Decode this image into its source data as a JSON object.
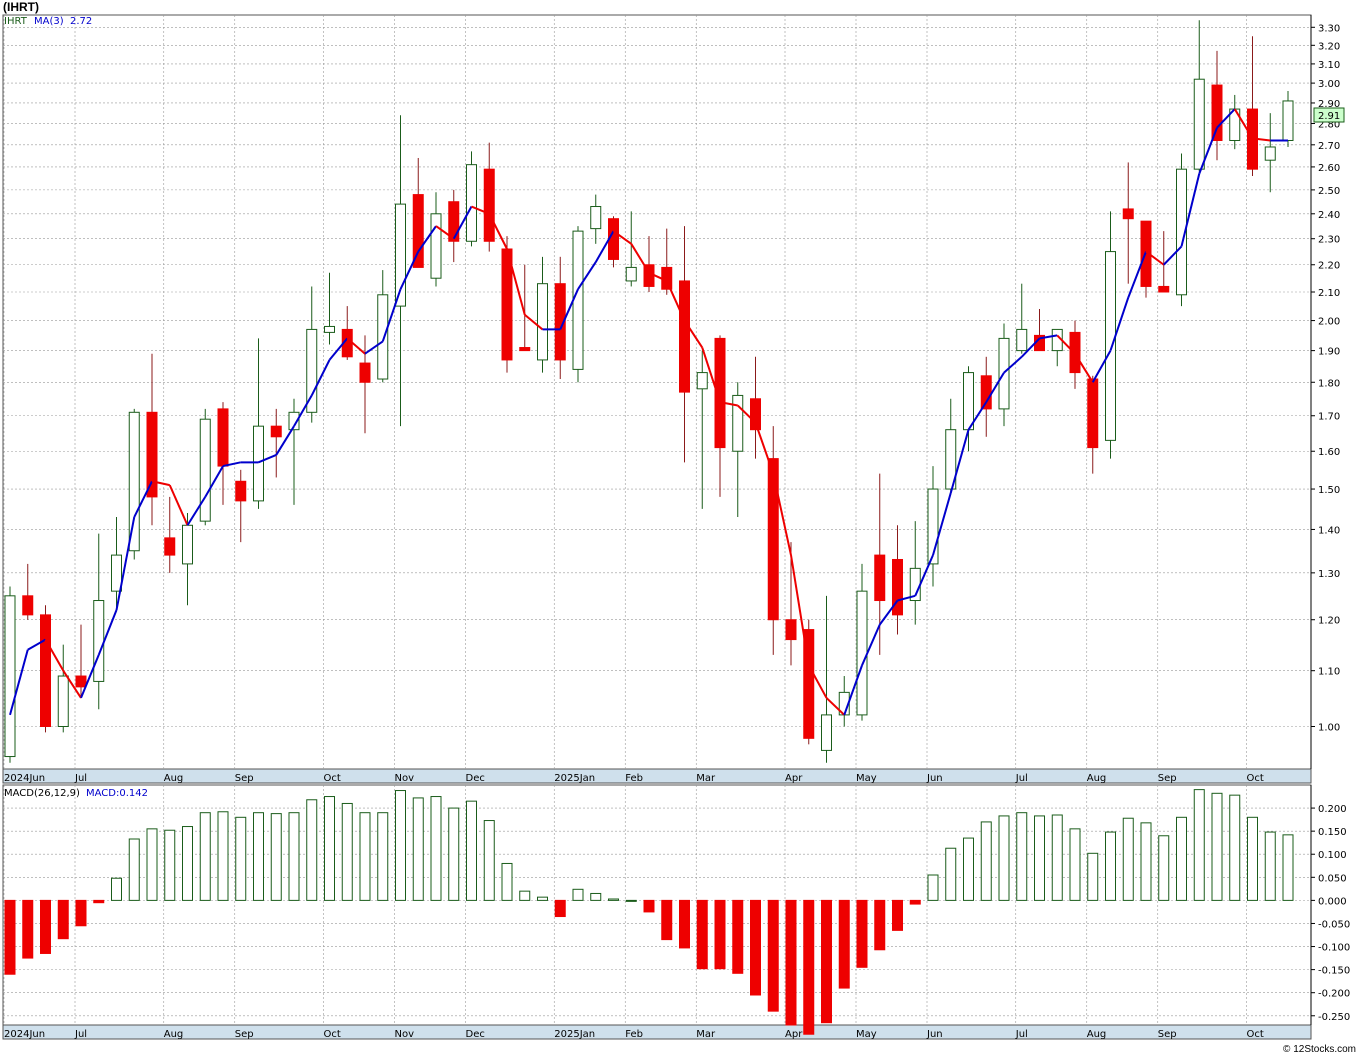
{
  "page": {
    "title": "(IHRT)",
    "footer": "© 12Stocks.com"
  },
  "price_panel": {
    "legend_symbol": "IHRT",
    "legend_ma": "MA(3)",
    "legend_ma_value": "2.72",
    "last_price_label": "2.91"
  },
  "macd_panel": {
    "legend_macd": "MACD(26,12,9)",
    "legend_macd_value": "MACD:0.142"
  },
  "colors": {
    "up_candle": "#1a5c1a",
    "down_candle": "#ee0000",
    "ma_up": "#0000cc",
    "ma_down": "#ee0000",
    "grid": "#999999",
    "axis_band": "#cfe0ec",
    "price_box": "#ccffcc"
  },
  "chart_data": [
    {
      "type": "candlestick",
      "name": "price",
      "y_scale": "log",
      "ylim": [
        0.93,
        3.37
      ],
      "y_ticks": [
        "1.00",
        "1.10",
        "1.20",
        "1.30",
        "1.40",
        "1.50",
        "1.60",
        "1.70",
        "1.80",
        "1.90",
        "2.00",
        "2.10",
        "2.20",
        "2.30",
        "2.40",
        "2.50",
        "2.60",
        "2.70",
        "2.80",
        "2.90",
        "3.00",
        "3.10",
        "3.20",
        "3.30"
      ],
      "x_labels": [
        "2024Jun",
        "Jul",
        "Aug",
        "Sep",
        "Oct",
        "Nov",
        "Dec",
        "2025Jan",
        "Feb",
        "Mar",
        "Apr",
        "May",
        "Jun",
        "Jul",
        "Aug",
        "Sep",
        "Oct"
      ],
      "x_label_index": [
        0,
        4,
        9,
        13,
        18,
        22,
        26,
        31,
        35,
        39,
        44,
        48,
        52,
        57,
        61,
        65,
        70
      ],
      "grid": true,
      "candles": [
        {
          "o": 0.95,
          "h": 1.27,
          "l": 0.94,
          "c": 1.25
        },
        {
          "o": 1.25,
          "h": 1.32,
          "l": 1.2,
          "c": 1.21
        },
        {
          "o": 1.21,
          "h": 1.23,
          "l": 0.99,
          "c": 1.0
        },
        {
          "o": 1.0,
          "h": 1.15,
          "l": 0.99,
          "c": 1.09
        },
        {
          "o": 1.09,
          "h": 1.19,
          "l": 1.05,
          "c": 1.07
        },
        {
          "o": 1.08,
          "h": 1.39,
          "l": 1.03,
          "c": 1.24
        },
        {
          "o": 1.26,
          "h": 1.43,
          "l": 1.22,
          "c": 1.34
        },
        {
          "o": 1.35,
          "h": 1.72,
          "l": 1.33,
          "c": 1.71
        },
        {
          "o": 1.71,
          "h": 1.89,
          "l": 1.41,
          "c": 1.48
        },
        {
          "o": 1.38,
          "h": 1.48,
          "l": 1.3,
          "c": 1.34
        },
        {
          "o": 1.32,
          "h": 1.44,
          "l": 1.23,
          "c": 1.41
        },
        {
          "o": 1.42,
          "h": 1.72,
          "l": 1.41,
          "c": 1.69
        },
        {
          "o": 1.72,
          "h": 1.74,
          "l": 1.46,
          "c": 1.56
        },
        {
          "o": 1.52,
          "h": 1.55,
          "l": 1.37,
          "c": 1.47
        },
        {
          "o": 1.47,
          "h": 1.94,
          "l": 1.45,
          "c": 1.67
        },
        {
          "o": 1.67,
          "h": 1.72,
          "l": 1.53,
          "c": 1.64
        },
        {
          "o": 1.66,
          "h": 1.75,
          "l": 1.46,
          "c": 1.71
        },
        {
          "o": 1.71,
          "h": 2.12,
          "l": 1.68,
          "c": 1.97
        },
        {
          "o": 1.96,
          "h": 2.17,
          "l": 1.92,
          "c": 1.98
        },
        {
          "o": 1.97,
          "h": 2.05,
          "l": 1.87,
          "c": 1.88
        },
        {
          "o": 1.86,
          "h": 1.95,
          "l": 1.65,
          "c": 1.8
        },
        {
          "o": 1.81,
          "h": 2.18,
          "l": 1.8,
          "c": 2.09
        },
        {
          "o": 2.05,
          "h": 2.84,
          "l": 1.67,
          "c": 2.44
        },
        {
          "o": 2.48,
          "h": 2.64,
          "l": 2.19,
          "c": 2.19
        },
        {
          "o": 2.15,
          "h": 2.49,
          "l": 2.12,
          "c": 2.4
        },
        {
          "o": 2.45,
          "h": 2.5,
          "l": 2.21,
          "c": 2.29
        },
        {
          "o": 2.29,
          "h": 2.67,
          "l": 2.27,
          "c": 2.61
        },
        {
          "o": 2.59,
          "h": 2.71,
          "l": 2.25,
          "c": 2.29
        },
        {
          "o": 2.26,
          "h": 2.31,
          "l": 1.83,
          "c": 1.87
        },
        {
          "o": 1.91,
          "h": 2.2,
          "l": 1.9,
          "c": 1.9
        },
        {
          "o": 1.87,
          "h": 2.23,
          "l": 1.83,
          "c": 2.13
        },
        {
          "o": 2.13,
          "h": 2.23,
          "l": 1.81,
          "c": 1.87
        },
        {
          "o": 1.84,
          "h": 2.35,
          "l": 1.8,
          "c": 2.33
        },
        {
          "o": 2.34,
          "h": 2.48,
          "l": 2.28,
          "c": 2.43
        },
        {
          "o": 2.38,
          "h": 2.39,
          "l": 2.19,
          "c": 2.22
        },
        {
          "o": 2.14,
          "h": 2.41,
          "l": 2.12,
          "c": 2.19
        },
        {
          "o": 2.2,
          "h": 2.31,
          "l": 2.1,
          "c": 2.12
        },
        {
          "o": 2.19,
          "h": 2.34,
          "l": 2.09,
          "c": 2.11
        },
        {
          "o": 2.14,
          "h": 2.35,
          "l": 1.57,
          "c": 1.77
        },
        {
          "o": 1.78,
          "h": 1.9,
          "l": 1.45,
          "c": 1.83
        },
        {
          "o": 1.94,
          "h": 1.95,
          "l": 1.48,
          "c": 1.61
        },
        {
          "o": 1.6,
          "h": 1.8,
          "l": 1.43,
          "c": 1.76
        },
        {
          "o": 1.75,
          "h": 1.88,
          "l": 1.58,
          "c": 1.66
        },
        {
          "o": 1.58,
          "h": 1.67,
          "l": 1.13,
          "c": 1.2
        },
        {
          "o": 1.2,
          "h": 1.37,
          "l": 1.11,
          "c": 1.16
        },
        {
          "o": 1.18,
          "h": 1.2,
          "l": 0.97,
          "c": 0.98
        },
        {
          "o": 0.96,
          "h": 1.25,
          "l": 0.94,
          "c": 1.02
        },
        {
          "o": 1.02,
          "h": 1.09,
          "l": 1.0,
          "c": 1.06
        },
        {
          "o": 1.02,
          "h": 1.32,
          "l": 1.01,
          "c": 1.26
        },
        {
          "o": 1.34,
          "h": 1.54,
          "l": 1.13,
          "c": 1.24
        },
        {
          "o": 1.33,
          "h": 1.41,
          "l": 1.17,
          "c": 1.21
        },
        {
          "o": 1.24,
          "h": 1.42,
          "l": 1.19,
          "c": 1.31
        },
        {
          "o": 1.32,
          "h": 1.56,
          "l": 1.27,
          "c": 1.5
        },
        {
          "o": 1.5,
          "h": 1.75,
          "l": 1.49,
          "c": 1.66
        },
        {
          "o": 1.66,
          "h": 1.85,
          "l": 1.6,
          "c": 1.83
        },
        {
          "o": 1.82,
          "h": 1.88,
          "l": 1.64,
          "c": 1.72
        },
        {
          "o": 1.72,
          "h": 1.99,
          "l": 1.67,
          "c": 1.94
        },
        {
          "o": 1.9,
          "h": 2.13,
          "l": 1.89,
          "c": 1.97
        },
        {
          "o": 1.95,
          "h": 2.04,
          "l": 1.9,
          "c": 1.9
        },
        {
          "o": 1.9,
          "h": 1.97,
          "l": 1.85,
          "c": 1.97
        },
        {
          "o": 1.96,
          "h": 2.0,
          "l": 1.78,
          "c": 1.83
        },
        {
          "o": 1.81,
          "h": 1.82,
          "l": 1.54,
          "c": 1.61
        },
        {
          "o": 1.63,
          "h": 2.41,
          "l": 1.58,
          "c": 2.25
        },
        {
          "o": 2.42,
          "h": 2.62,
          "l": 2.13,
          "c": 2.38
        },
        {
          "o": 2.37,
          "h": 2.37,
          "l": 2.08,
          "c": 2.12
        },
        {
          "o": 2.12,
          "h": 2.33,
          "l": 2.1,
          "c": 2.1
        },
        {
          "o": 2.09,
          "h": 2.66,
          "l": 2.05,
          "c": 2.59
        },
        {
          "o": 2.59,
          "h": 3.34,
          "l": 2.58,
          "c": 3.02
        },
        {
          "o": 2.99,
          "h": 3.17,
          "l": 2.63,
          "c": 2.72
        },
        {
          "o": 2.72,
          "h": 2.94,
          "l": 2.68,
          "c": 2.87
        },
        {
          "o": 2.87,
          "h": 3.25,
          "l": 2.56,
          "c": 2.59
        },
        {
          "o": 2.63,
          "h": 2.85,
          "l": 2.49,
          "c": 2.69
        },
        {
          "o": 2.72,
          "h": 2.96,
          "l": 2.69,
          "c": 2.91
        }
      ],
      "ma": {
        "label": "MA(3)",
        "values": [
          1.02,
          1.14,
          1.16,
          1.1,
          1.05,
          1.13,
          1.22,
          1.43,
          1.52,
          1.51,
          1.41,
          1.48,
          1.56,
          1.57,
          1.57,
          1.59,
          1.67,
          1.76,
          1.87,
          1.94,
          1.89,
          1.93,
          2.11,
          2.25,
          2.35,
          2.3,
          2.43,
          2.4,
          2.26,
          2.02,
          1.97,
          1.97,
          2.11,
          2.21,
          2.33,
          2.28,
          2.17,
          2.14,
          2.0,
          1.91,
          1.74,
          1.73,
          1.68,
          1.54,
          1.34,
          1.11,
          1.05,
          1.02,
          1.11,
          1.19,
          1.24,
          1.25,
          1.34,
          1.49,
          1.66,
          1.74,
          1.83,
          1.88,
          1.94,
          1.95,
          1.89,
          1.8,
          1.9,
          2.08,
          2.25,
          2.2,
          2.27,
          2.57,
          2.78,
          2.87,
          2.73,
          2.72,
          2.72
        ]
      }
    },
    {
      "type": "bar",
      "name": "macd",
      "ylim": [
        -0.27,
        0.25
      ],
      "y_ticks": [
        "0.200",
        "0.150",
        "0.100",
        "0.050",
        "0.000",
        "-0.050",
        "-0.100",
        "-0.150",
        "-0.200",
        "-0.250"
      ],
      "grid": true,
      "values": [
        -0.16,
        -0.125,
        -0.115,
        -0.083,
        -0.055,
        -0.005,
        0.048,
        0.133,
        0.155,
        0.152,
        0.16,
        0.19,
        0.192,
        0.18,
        0.19,
        0.188,
        0.19,
        0.218,
        0.225,
        0.21,
        0.19,
        0.19,
        0.238,
        0.222,
        0.225,
        0.2,
        0.215,
        0.173,
        0.08,
        0.02,
        0.007,
        -0.035,
        0.024,
        0.015,
        0.003,
        0.0,
        -0.025,
        -0.085,
        -0.103,
        -0.148,
        -0.148,
        -0.158,
        -0.205,
        -0.24,
        -0.27,
        -0.29,
        -0.265,
        -0.19,
        -0.145,
        -0.107,
        -0.065,
        -0.008,
        0.055,
        0.113,
        0.135,
        0.17,
        0.183,
        0.19,
        0.183,
        0.185,
        0.155,
        0.102,
        0.148,
        0.178,
        0.168,
        0.14,
        0.18,
        0.24,
        0.232,
        0.228,
        0.18,
        0.148,
        0.142
      ]
    }
  ]
}
